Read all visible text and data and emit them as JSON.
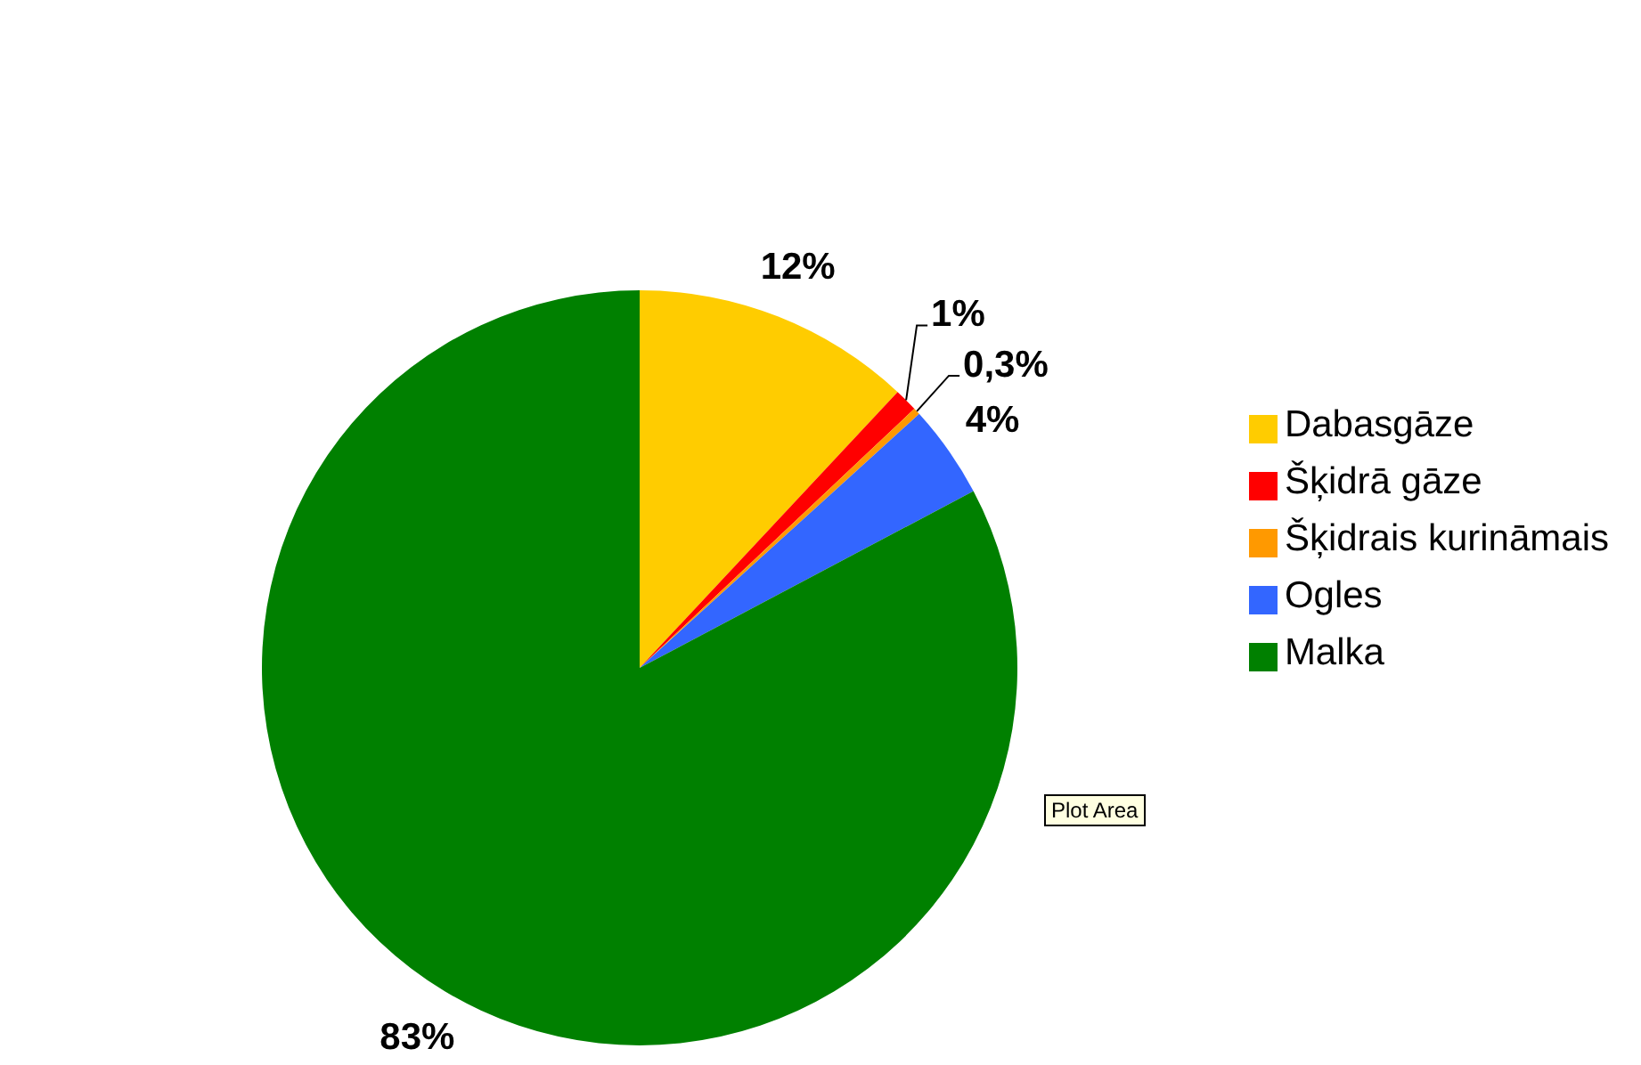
{
  "chart_data": {
    "type": "pie",
    "categories": [
      "Dabasgāze",
      "Šķidrā gāze",
      "Šķidrais kurināmais",
      "Ogles",
      "Malka"
    ],
    "values": [
      12,
      1,
      0.3,
      4,
      83
    ],
    "value_labels": [
      "12%",
      "1%",
      "0,3%",
      "4%",
      "83%"
    ],
    "colors": [
      "#ffcc00",
      "#ff0000",
      "#ff9900",
      "#3366ff",
      "#008000"
    ],
    "legend": "right",
    "annotations": [
      "Plot Area"
    ]
  }
}
